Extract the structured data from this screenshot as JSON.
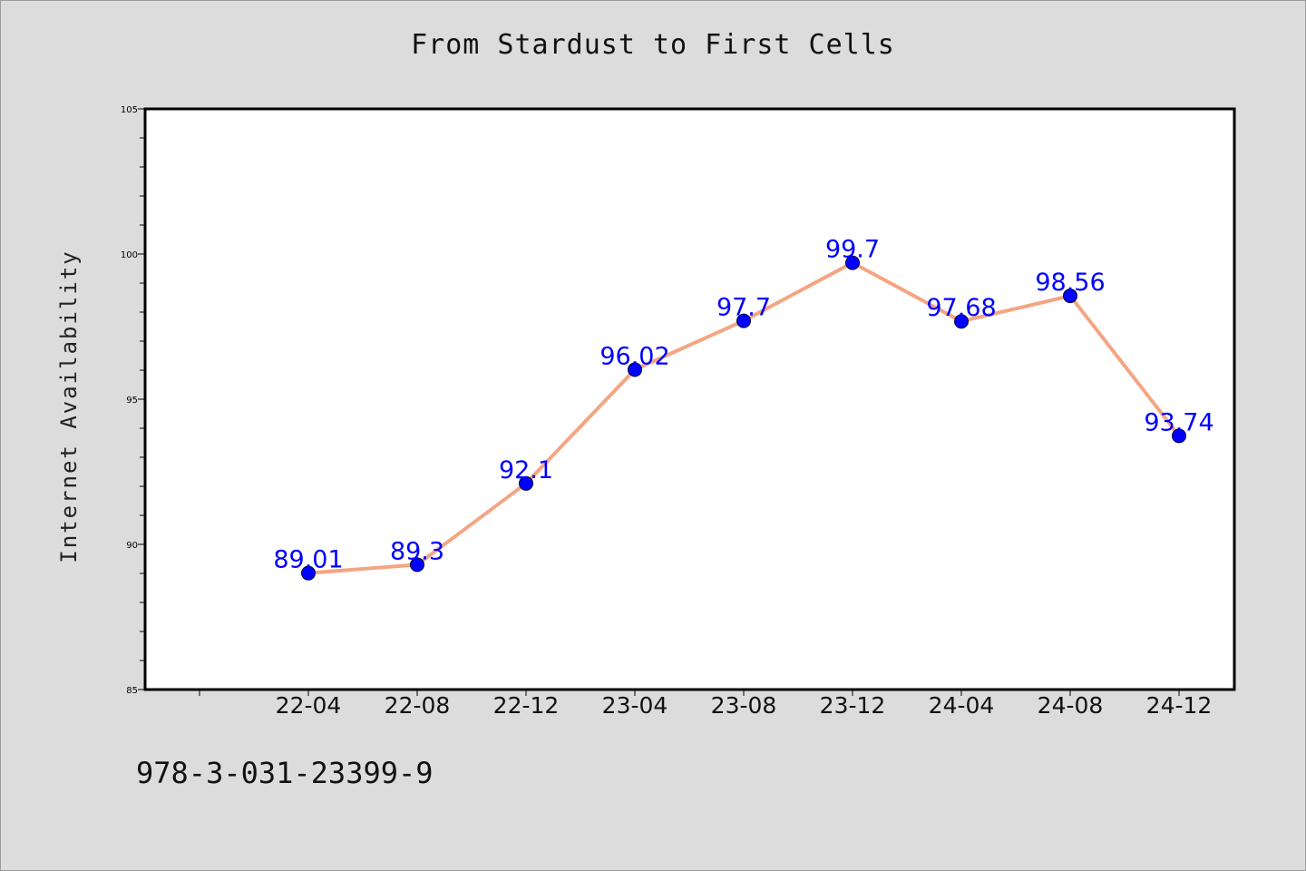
{
  "chart_data": {
    "type": "line",
    "title": "From Stardust to First Cells",
    "xlabel": "",
    "ylabel": "Internet Availability",
    "categories": [
      "22-04",
      "22-08",
      "22-12",
      "23-04",
      "23-08",
      "23-12",
      "24-04",
      "24-08",
      "24-12"
    ],
    "series": [
      {
        "values": [
          89.01,
          89.3,
          92.1,
          96.02,
          97.7,
          99.7,
          97.68,
          98.56,
          93.74
        ],
        "labels": [
          "89.01",
          "89.3",
          "92.1",
          "96.02",
          "97.7",
          "99.7",
          "97.68",
          "98.56",
          "93.74"
        ],
        "line_color": "#f4a582",
        "marker_color": "#0000ff",
        "label_color": "#0000ff"
      }
    ],
    "ylim": [
      85,
      105
    ],
    "yticks": [
      "85",
      "90",
      "95",
      "100",
      "105"
    ],
    "grid": false,
    "legend": "none"
  },
  "footer": {
    "text": "978-3-031-23399-9"
  }
}
